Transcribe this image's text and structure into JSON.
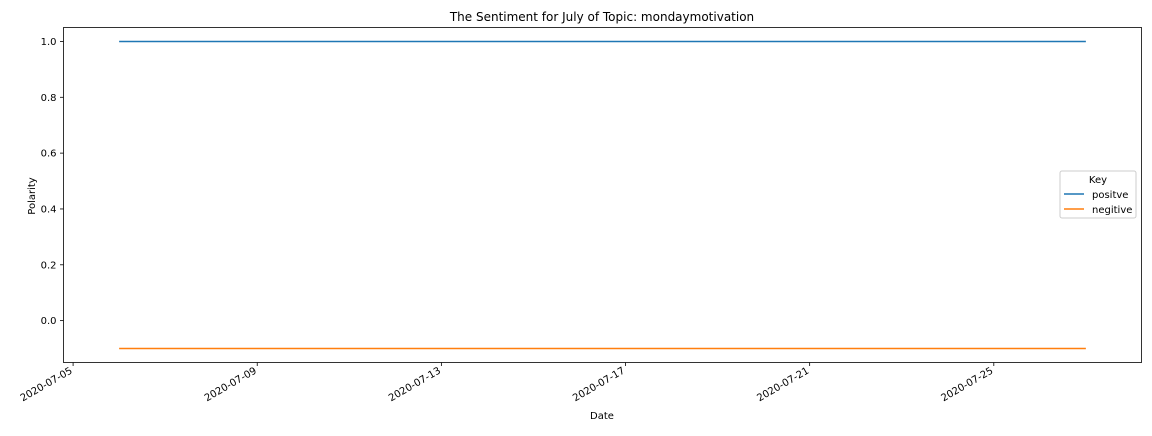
{
  "chart_data": {
    "type": "line",
    "title": "The Sentiment for July of Topic: mondaymotivation",
    "xlabel": "Date",
    "ylabel": "Polarity",
    "x_type": "date",
    "xlim": [
      "2020-07-04T19:00",
      "2020-07-28T05:00"
    ],
    "ylim": [
      -0.15,
      1.05
    ],
    "x_ticks": [
      "2020-07-05",
      "2020-07-09",
      "2020-07-13",
      "2020-07-17",
      "2020-07-21",
      "2020-07-25"
    ],
    "y_ticks": [
      0.0,
      0.2,
      0.4,
      0.6,
      0.8,
      1.0
    ],
    "y_tick_labels": [
      "0.0",
      "0.2",
      "0.4",
      "0.6",
      "0.8",
      "1.0"
    ],
    "grid": false,
    "legend": {
      "title": "Key",
      "placement": "center-right",
      "entries": [
        "positve",
        "negitive"
      ]
    },
    "series": [
      {
        "name": "positve",
        "color": "#1f77b4",
        "x": [
          "2020-07-06",
          "2020-07-27"
        ],
        "y": [
          1.0,
          1.0
        ]
      },
      {
        "name": "negitive",
        "color": "#ff7f0e",
        "x": [
          "2020-07-06",
          "2020-07-27"
        ],
        "y": [
          -0.1,
          -0.1
        ]
      }
    ]
  }
}
